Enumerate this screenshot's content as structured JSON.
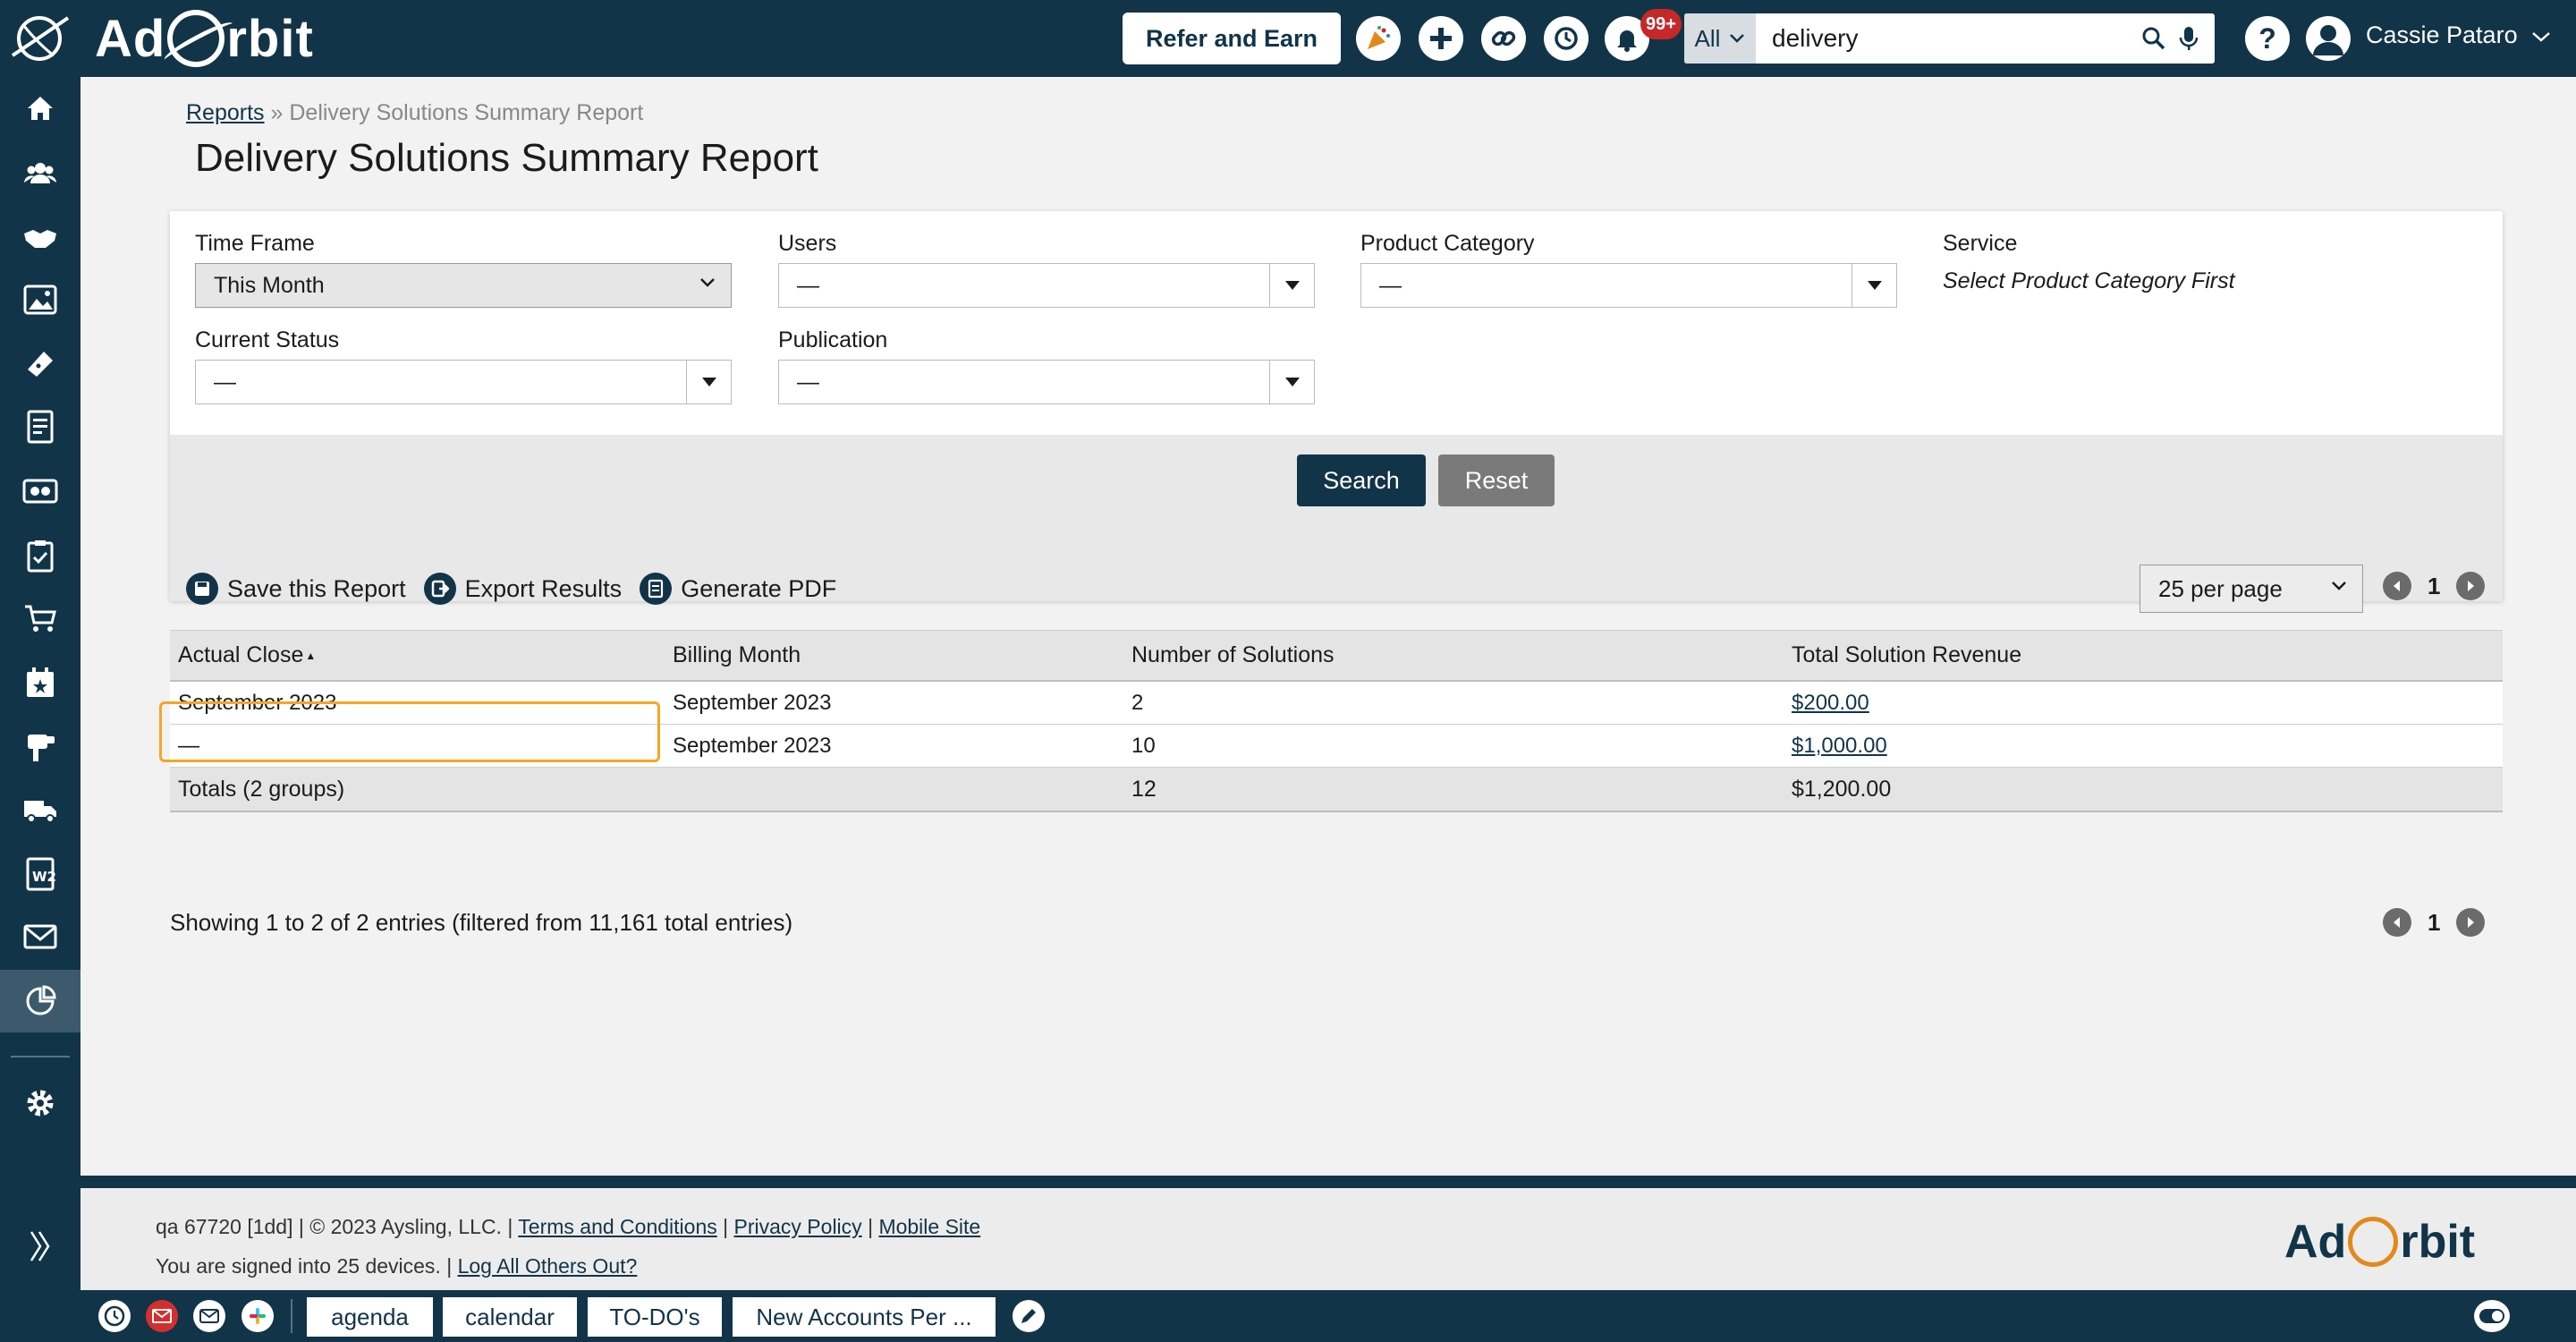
{
  "app": {
    "brand_text_left": "Ad",
    "brand_text_right": "rbit"
  },
  "topbar": {
    "refer_label": "Refer and Earn",
    "notifications_badge": "99+",
    "search_scope": "All",
    "search_value": "delivery",
    "user_name": "Cassie Pataro",
    "icons": [
      "party-icon",
      "add-icon",
      "link-icon",
      "history-icon",
      "bell-icon",
      "search-icon",
      "microphone-icon",
      "help-icon",
      "user-icon"
    ]
  },
  "sidebar": {
    "items": [
      "home-icon",
      "contacts-icon",
      "handshake-icon",
      "media-icon",
      "ticket-icon",
      "invoice-icon",
      "billing-icon",
      "tasks-icon",
      "cart-icon",
      "calendar-icon",
      "campaign-icon",
      "delivery-icon",
      "w2-icon",
      "mail-icon",
      "reports-icon",
      "settings-icon",
      "expand-icon"
    ],
    "active": "reports-icon"
  },
  "breadcrumb": {
    "root": "Reports",
    "separator": "»",
    "current": "Delivery Solutions Summary Report"
  },
  "page_title": "Delivery Solutions Summary Report",
  "filters": {
    "time_frame": {
      "label": "Time Frame",
      "value": "This Month"
    },
    "users": {
      "label": "Users",
      "value": "—"
    },
    "product_category": {
      "label": "Product Category",
      "value": "—"
    },
    "service": {
      "label": "Service",
      "note": "Select Product Category First"
    },
    "current_status": {
      "label": "Current Status",
      "value": "—"
    },
    "publication": {
      "label": "Publication",
      "value": "—"
    },
    "search_label": "Search",
    "reset_label": "Reset"
  },
  "actions": {
    "save": "Save this Report",
    "export": "Export Results",
    "pdf": "Generate PDF"
  },
  "pagination": {
    "per_page": "25 per page",
    "page": "1"
  },
  "table": {
    "headers": [
      "Actual Close",
      "Billing Month",
      "Number of Solutions",
      "Total Solution Revenue"
    ],
    "sort_indicator": "▲",
    "rows": [
      [
        "September 2023",
        "September 2023",
        "2",
        "$200.00"
      ],
      [
        "—",
        "September 2023",
        "10",
        "$1,000.00"
      ]
    ],
    "totals": {
      "label": "Totals (2 groups)",
      "count": "12",
      "revenue": "$1,200.00"
    }
  },
  "showing": "Showing 1 to 2 of 2 entries (filtered from 11,161 total entries)",
  "footer": {
    "copyright": "qa 67720 [1dd] | © 2023 Aysling, LLC. |",
    "terms": "Terms and Conditions",
    "privacy": "Privacy Policy",
    "mobile": "Mobile Site",
    "devices": "You are signed into 25 devices. |",
    "logout_others": "Log All Others Out?",
    "sep": "|"
  },
  "bottombar": {
    "tabs": [
      "agenda",
      "calendar",
      "TO-DO's",
      "New Accounts Per ..."
    ],
    "icons": [
      "clock-icon",
      "email-icon",
      "chat-icon",
      "slack-icon",
      "edit-icon",
      "toggle-icon"
    ]
  },
  "colors": {
    "navy": "#123449",
    "accent": "#f5a623",
    "badge": "#c62828"
  }
}
